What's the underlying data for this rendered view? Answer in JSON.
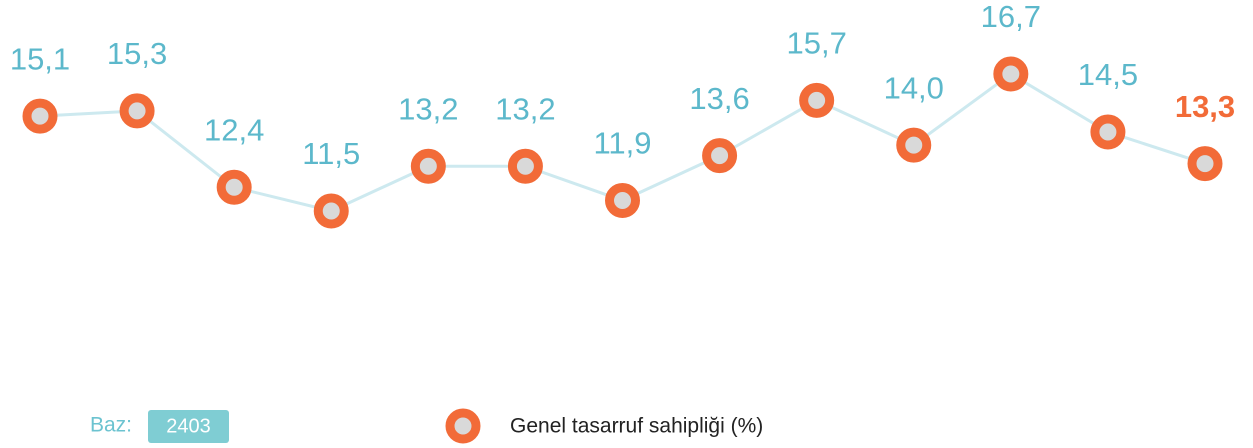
{
  "chart_data": {
    "type": "line",
    "categories": [
      null,
      null,
      null,
      null,
      null,
      null,
      null,
      null,
      null,
      null,
      null,
      null,
      null
    ],
    "series": [
      {
        "name": "Genel tasarruf sahipliği (%)",
        "color": "#f26b38",
        "line_color": "#cde9ef",
        "values": [
          15.1,
          15.3,
          12.4,
          11.5,
          13.2,
          13.2,
          11.9,
          13.6,
          15.7,
          14.0,
          16.7,
          14.5,
          13.3
        ],
        "value_labels": [
          "15,1",
          "15,3",
          "12,4",
          "11,5",
          "13,2",
          "13,2",
          "11,9",
          "13,6",
          "15,7",
          "14,0",
          "16,7",
          "14,5",
          "13,3"
        ]
      }
    ],
    "base": {
      "label": "Baz:",
      "value": 2403
    }
  }
}
